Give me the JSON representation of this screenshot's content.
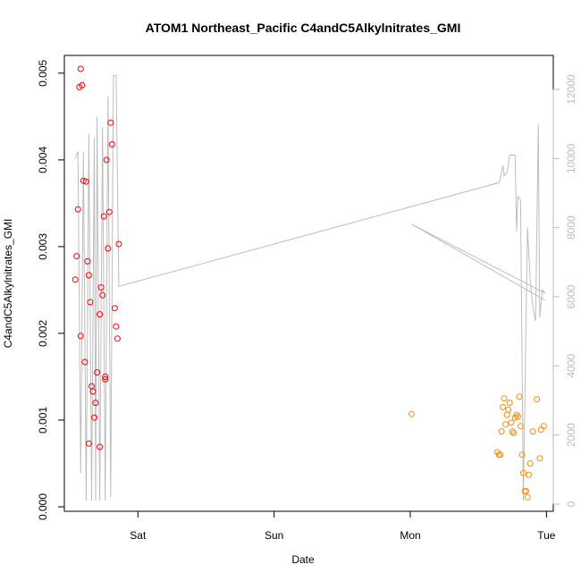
{
  "chart_data": {
    "type": "scatter",
    "title": "ATOM1 Northeast_Pacific C4andC5Alkylnitrates_GMI",
    "xlabel": "Date",
    "ylabel": "C4andC5Alkylnitrates_GMI",
    "x_unit": "days since Friday 00:00",
    "xlim": [
      0.46,
      4.05
    ],
    "ylim": [
      0.0,
      0.00505
    ],
    "y2lim": [
      0,
      12000
    ],
    "x_ticks": [
      {
        "value": 1,
        "label": "Sat"
      },
      {
        "value": 2,
        "label": "Sun"
      },
      {
        "value": 3,
        "label": "Mon"
      },
      {
        "value": 4,
        "label": "Tue"
      }
    ],
    "y_ticks": [
      {
        "value": 0.0,
        "label": "0.000"
      },
      {
        "value": 0.001,
        "label": "0.001"
      },
      {
        "value": 0.002,
        "label": "0.002"
      },
      {
        "value": 0.003,
        "label": "0.003"
      },
      {
        "value": 0.004,
        "label": "0.004"
      },
      {
        "value": 0.005,
        "label": "0.005"
      }
    ],
    "y2_ticks": [
      {
        "value": 0,
        "label": "0"
      },
      {
        "value": 2000,
        "label": "2000"
      },
      {
        "value": 4000,
        "label": "4000"
      },
      {
        "value": 6000,
        "label": "6000"
      },
      {
        "value": 8000,
        "label": "8000"
      },
      {
        "value": 10000,
        "label": "10000"
      },
      {
        "value": 12000,
        "label": "12000"
      }
    ],
    "grid": false,
    "series": [
      {
        "name": "",
        "color": "#ff0000",
        "marker": "open-circle",
        "points": [
          [
            0.54,
            0.00262
          ],
          [
            0.55,
            0.00289
          ],
          [
            0.56,
            0.00343
          ],
          [
            0.57,
            0.00484
          ],
          [
            0.58,
            0.00505
          ],
          [
            0.58,
            0.00197
          ],
          [
            0.59,
            0.00486
          ],
          [
            0.6,
            0.00376
          ],
          [
            0.61,
            0.00167
          ],
          [
            0.62,
            0.00375
          ],
          [
            0.63,
            0.00283
          ],
          [
            0.64,
            0.00267
          ],
          [
            0.64,
            0.00073
          ],
          [
            0.65,
            0.00236
          ],
          [
            0.66,
            0.00139
          ],
          [
            0.67,
            0.00133
          ],
          [
            0.68,
            0.00103
          ],
          [
            0.69,
            0.0012
          ],
          [
            0.7,
            0.00155
          ],
          [
            0.72,
            0.00222
          ],
          [
            0.72,
            0.00069
          ],
          [
            0.73,
            0.00253
          ],
          [
            0.74,
            0.00244
          ],
          [
            0.75,
            0.00335
          ],
          [
            0.76,
            0.00147
          ],
          [
            0.76,
            0.0015
          ],
          [
            0.77,
            0.004
          ],
          [
            0.78,
            0.00298
          ],
          [
            0.79,
            0.0034
          ],
          [
            0.8,
            0.00443
          ],
          [
            0.81,
            0.00418
          ],
          [
            0.83,
            0.00229
          ],
          [
            0.84,
            0.00208
          ],
          [
            0.85,
            0.00194
          ],
          [
            0.86,
            0.00303
          ]
        ]
      },
      {
        "name": "",
        "color": "#ff8c00",
        "marker": "open-circle",
        "points": [
          [
            3.01,
            0.00107
          ],
          [
            3.64,
            0.00063
          ],
          [
            3.65,
            0.0006
          ],
          [
            3.66,
            0.0006
          ],
          [
            3.67,
            0.00087
          ],
          [
            3.68,
            0.00115
          ],
          [
            3.69,
            0.00125
          ],
          [
            3.7,
            0.00095
          ],
          [
            3.71,
            0.00106
          ],
          [
            3.72,
            0.00112
          ],
          [
            3.73,
            0.0012
          ],
          [
            3.74,
            0.00097
          ],
          [
            3.75,
            0.00087
          ],
          [
            3.76,
            0.00085
          ],
          [
            3.77,
            0.00103
          ],
          [
            3.78,
            0.00106
          ],
          [
            3.79,
            0.00104
          ],
          [
            3.8,
            0.00127
          ],
          [
            3.81,
            0.00093
          ],
          [
            3.82,
            0.0006
          ],
          [
            3.83,
            0.00039
          ],
          [
            3.84,
            0.00018
          ],
          [
            3.85,
            0.00018
          ],
          [
            3.86,
            0.00011
          ],
          [
            3.87,
            0.00037
          ],
          [
            3.88,
            0.0005
          ],
          [
            3.9,
            0.00087
          ],
          [
            3.93,
            0.00124
          ],
          [
            3.95,
            0.00056
          ],
          [
            3.96,
            0.00089
          ],
          [
            3.98,
            0.00093
          ]
        ]
      },
      {
        "name": "",
        "color": "#bdbdbd",
        "axis": "right",
        "type": "line",
        "points": [
          [
            0.54,
            10000
          ],
          [
            0.56,
            10200
          ],
          [
            0.58,
            900
          ],
          [
            0.6,
            10200
          ],
          [
            0.62,
            100
          ],
          [
            0.64,
            10700
          ],
          [
            0.66,
            100
          ],
          [
            0.68,
            10600
          ],
          [
            0.69,
            100
          ],
          [
            0.7,
            11200
          ],
          [
            0.72,
            100
          ],
          [
            0.74,
            10900
          ],
          [
            0.76,
            100
          ],
          [
            0.78,
            11800
          ],
          [
            0.8,
            200
          ],
          [
            0.82,
            12400
          ],
          [
            0.84,
            12400
          ],
          [
            0.86,
            6300
          ],
          [
            3.65,
            9300
          ],
          [
            3.66,
            9400
          ],
          [
            3.68,
            9800
          ],
          [
            3.69,
            9500
          ],
          [
            3.71,
            9600
          ],
          [
            3.73,
            10100
          ],
          [
            3.77,
            10100
          ],
          [
            3.78,
            7900
          ],
          [
            3.79,
            8900
          ],
          [
            3.81,
            8800
          ],
          [
            3.83,
            100
          ],
          [
            3.86,
            8000
          ],
          [
            3.88,
            6500
          ],
          [
            3.9,
            5700
          ],
          [
            3.92,
            5300
          ],
          [
            3.94,
            11000
          ],
          [
            3.95,
            5400
          ],
          [
            3.97,
            6200
          ],
          [
            3.99,
            6100
          ],
          [
            3.01,
            8100
          ],
          [
            3.99,
            5900
          ]
        ]
      }
    ]
  }
}
